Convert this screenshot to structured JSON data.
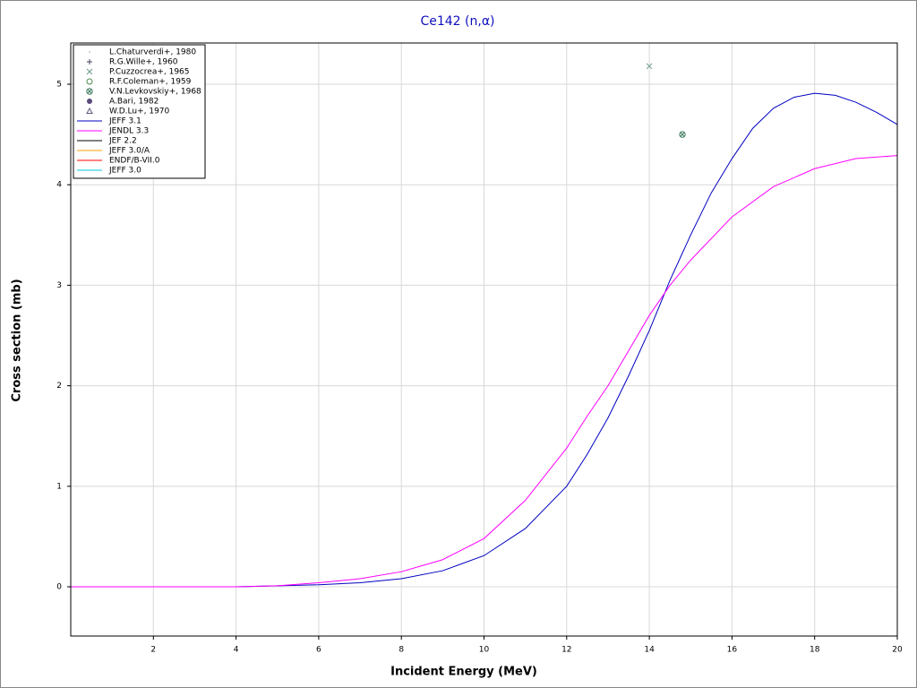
{
  "chart_data": {
    "type": "line",
    "title": "Ce142 (n,α)",
    "xlabel": "Incident Energy (MeV)",
    "ylabel": "Cross section (mb)",
    "xlim": [
      0,
      20
    ],
    "ylim": [
      -0.49,
      5.41
    ],
    "xticks": [
      2,
      4,
      6,
      8,
      10,
      12,
      14,
      16,
      18,
      20
    ],
    "yticks": [
      0,
      1,
      2,
      3,
      4,
      5
    ],
    "grid": true,
    "legend": "upper left",
    "series": [
      {
        "name": "L.Chaturverdi+, 1980",
        "color": "#9a9a9a",
        "marker": "dot",
        "x": [],
        "values": []
      },
      {
        "name": "R.G.Wille+, 1960",
        "color": "#404060",
        "marker": "plus",
        "x": [],
        "values": []
      },
      {
        "name": "P.Cuzzocrea+, 1965",
        "color": "#6a9a8a",
        "marker": "cross",
        "x": [
          14
        ],
        "values": [
          5.18
        ]
      },
      {
        "name": "R.F.Coleman+, 1959",
        "color": "#4a8a4a",
        "marker": "circle",
        "x": [],
        "values": []
      },
      {
        "name": "V.N.Levkovskiy+, 1968",
        "color": "#3a7a5a",
        "marker": "circle-cross",
        "x": [
          14.8
        ],
        "values": [
          4.5
        ]
      },
      {
        "name": "A.Bari, 1982",
        "color": "#5a4a7a",
        "marker": "filled-circle",
        "x": [],
        "values": []
      },
      {
        "name": "W.D.Lu+, 1970",
        "color": "#5a5a7a",
        "marker": "triangle",
        "x": [],
        "values": []
      },
      {
        "name": "JEFF 3.1",
        "color": "#0000c0",
        "x": [
          0,
          4,
          5,
          6,
          7,
          8,
          9,
          10,
          11,
          12,
          12.5,
          13,
          13.5,
          14,
          14.5,
          15,
          15.5,
          16,
          16.5,
          17,
          17.5,
          18,
          18.5,
          19,
          19.5,
          20
        ],
        "values": [
          0,
          0,
          0.01,
          0.02,
          0.04,
          0.08,
          0.16,
          0.31,
          0.58,
          1.0,
          1.32,
          1.68,
          2.1,
          2.55,
          3.05,
          3.5,
          3.92,
          4.26,
          4.56,
          4.76,
          4.87,
          4.91,
          4.89,
          4.82,
          4.72,
          4.6
        ]
      },
      {
        "name": "JENDL 3.3",
        "color": "#ff00ff",
        "x": [
          0,
          4,
          5,
          6,
          7,
          8,
          9,
          10,
          11,
          12,
          12.5,
          13,
          13.5,
          14,
          14.5,
          15,
          16,
          17,
          18,
          19,
          20
        ],
        "values": [
          0,
          0,
          0.01,
          0.04,
          0.08,
          0.15,
          0.27,
          0.48,
          0.86,
          1.38,
          1.7,
          2.0,
          2.35,
          2.7,
          3.0,
          3.25,
          3.68,
          3.98,
          4.16,
          4.26,
          4.29
        ]
      },
      {
        "name": "JEF 2.2",
        "color": "#000000",
        "x": [],
        "values": []
      },
      {
        "name": "JEFF 3.0/A",
        "color": "#ffa000",
        "x": [],
        "values": []
      },
      {
        "name": "ENDF/B-VII.0",
        "color": "#ff0000",
        "x": [],
        "values": []
      },
      {
        "name": "JEFF 3.0",
        "color": "#00c8d8",
        "x": [],
        "values": []
      }
    ]
  }
}
